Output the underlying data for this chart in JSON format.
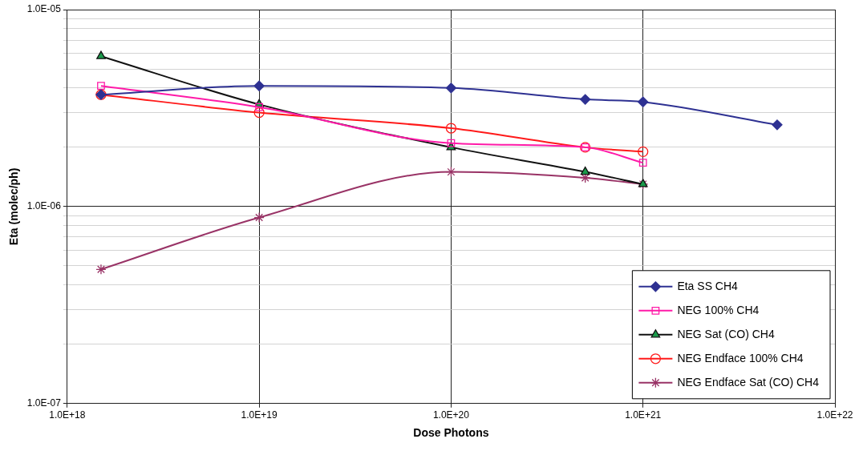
{
  "chart_data": {
    "type": "line",
    "xlabel": "Dose Photons",
    "ylabel": "Eta (molec/ph)",
    "log": "xy",
    "grid": true,
    "legend": "bottom right",
    "line_style": "solid",
    "xlim": [
      1e+18,
      1e+22
    ],
    "xticks": [
      {
        "value": 1e+18,
        "label": "1.0E+18"
      },
      {
        "value": 1e+19,
        "label": "1.0E+19"
      },
      {
        "value": 1e+20,
        "label": "1.0E+20"
      },
      {
        "value": 1e+21,
        "label": "1.0E+21"
      },
      {
        "value": 1e+22,
        "label": "1.0E+22"
      }
    ],
    "ylim": [
      1e-07,
      1e-05
    ],
    "yticks": [
      {
        "value": 1e-07,
        "label": "1.0E-07"
      },
      {
        "value": 2e-07,
        "label": null
      },
      {
        "value": 3e-07,
        "label": null
      },
      {
        "value": 4e-07,
        "label": null
      },
      {
        "value": 5e-07,
        "label": null
      },
      {
        "value": 6e-07,
        "label": null
      },
      {
        "value": 7e-07,
        "label": null
      },
      {
        "value": 8e-07,
        "label": null
      },
      {
        "value": 9e-07,
        "label": null
      },
      {
        "value": 1e-06,
        "label": "1.0E-06"
      },
      {
        "value": 2e-06,
        "label": null
      },
      {
        "value": 3e-06,
        "label": null
      },
      {
        "value": 4e-06,
        "label": null
      },
      {
        "value": 5e-06,
        "label": null
      },
      {
        "value": 6e-06,
        "label": null
      },
      {
        "value": 7e-06,
        "label": null
      },
      {
        "value": 8e-06,
        "label": null
      },
      {
        "value": 9e-06,
        "label": null
      },
      {
        "value": 1e-05,
        "label": "1.0E-05"
      }
    ],
    "series": [
      {
        "name": "Eta SS CH4",
        "color": "#2e3192",
        "marker": "diamond",
        "x": [
          1.5e+18,
          1e+19,
          1e+20,
          5e+20,
          1e+21,
          5e+21
        ],
        "values": [
          3.7e-06,
          4.1e-06,
          4e-06,
          3.5e-06,
          3.4e-06,
          2.6e-06
        ]
      },
      {
        "name": "NEG 100% CH4",
        "color": "#ff1aa8",
        "marker": "square",
        "x": [
          1.5e+18,
          1e+19,
          1e+20,
          5e+20,
          1e+21
        ],
        "values": [
          4.1e-06,
          3.2e-06,
          2.1e-06,
          2e-06,
          1.67e-06
        ]
      },
      {
        "name": "NEG Sat (CO) CH4",
        "color": "#111111",
        "marker": "triangle",
        "x": [
          1.5e+18,
          1e+19,
          1e+20,
          5e+20,
          1e+21
        ],
        "values": [
          5.8e-06,
          3.3e-06,
          2e-06,
          1.5e-06,
          1.3e-06
        ]
      },
      {
        "name": "NEG Endface 100% CH4",
        "color": "#ff1a1a",
        "marker": "circle",
        "x": [
          1.5e+18,
          1e+19,
          1e+20,
          5e+20,
          1e+21
        ],
        "values": [
          3.7e-06,
          3e-06,
          2.5e-06,
          2e-06,
          1.9e-06
        ]
      },
      {
        "name": "NEG Endface Sat (CO) CH4",
        "color": "#993366",
        "marker": "cross",
        "x": [
          1.5e+18,
          1e+19,
          1e+20,
          5e+20,
          1e+21
        ],
        "values": [
          4.8e-07,
          8.8e-07,
          1.5e-06,
          1.4e-06,
          1.3e-06
        ]
      }
    ]
  }
}
